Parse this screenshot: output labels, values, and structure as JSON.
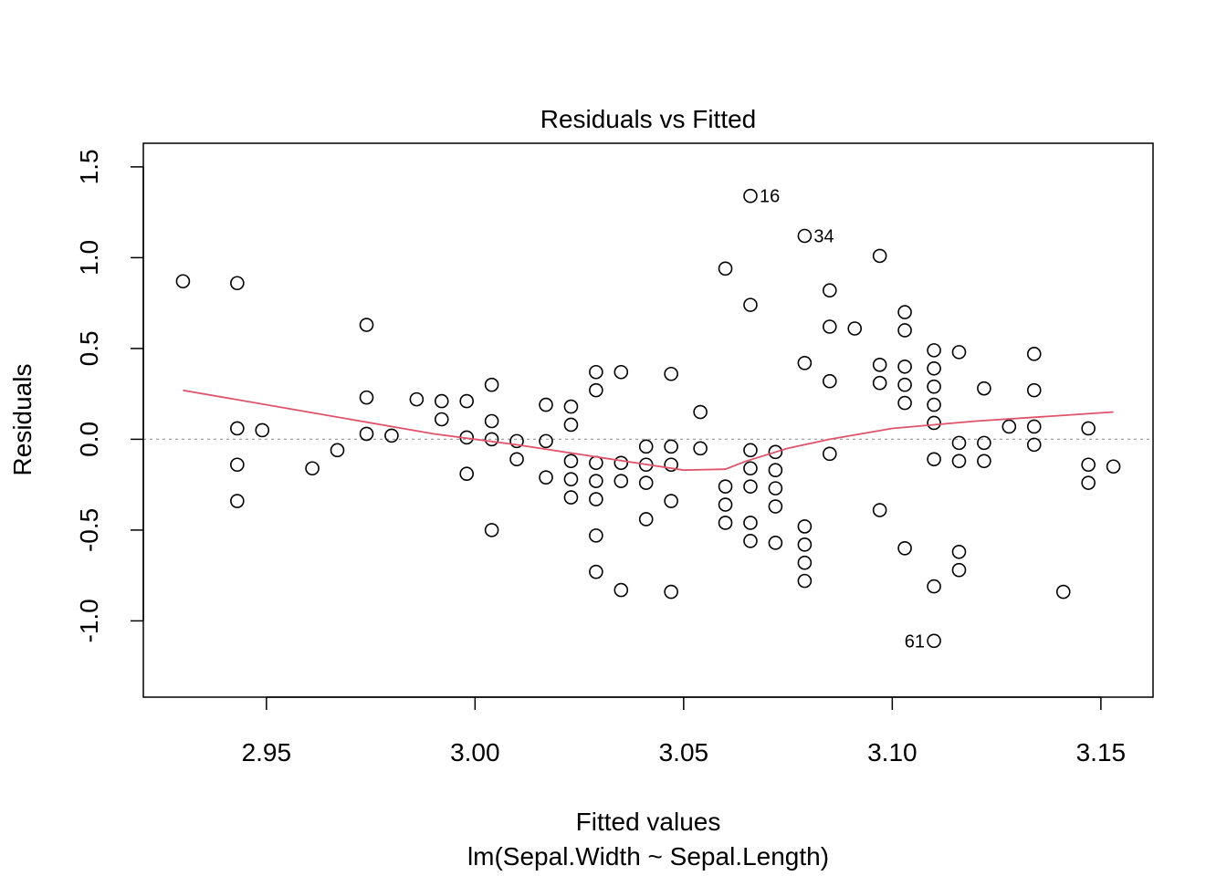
{
  "chart_data": {
    "type": "scatter",
    "title": "Residuals vs Fitted",
    "xlabel": "Fitted values",
    "subtitle": "lm(Sepal.Width ~ Sepal.Length)",
    "ylabel": "Residuals",
    "xlim": [
      2.9205,
      3.1625
    ],
    "ylim": [
      -1.42,
      1.63
    ],
    "xticks": [
      2.95,
      3.0,
      3.05,
      3.1,
      3.15
    ],
    "xtick_labels": [
      "2.95",
      "3.00",
      "3.05",
      "3.10",
      "3.15"
    ],
    "yticks": [
      -1.0,
      -0.5,
      0.0,
      0.5,
      1.0,
      1.5
    ],
    "ytick_labels": [
      "-1.0",
      "-0.5",
      "0.0",
      "0.5",
      "1.0",
      "1.5"
    ],
    "reference_line": {
      "y": 0,
      "style": "dotted",
      "color": "#a0a0a0"
    },
    "smoother": {
      "color": "#df536b",
      "x": [
        2.93,
        2.96,
        2.99,
        3.01,
        3.03,
        3.05,
        3.06,
        3.065,
        3.075,
        3.085,
        3.1,
        3.12,
        3.14,
        3.153
      ],
      "y": [
        0.27,
        0.15,
        0.03,
        -0.03,
        -0.1,
        -0.17,
        -0.165,
        -0.12,
        -0.05,
        0.0,
        0.06,
        0.1,
        0.13,
        0.15
      ]
    },
    "points": [
      [
        2.93,
        0.87
      ],
      [
        2.943,
        0.86
      ],
      [
        2.943,
        0.06
      ],
      [
        2.943,
        -0.14
      ],
      [
        2.943,
        -0.34
      ],
      [
        2.949,
        0.05
      ],
      [
        2.961,
        -0.16
      ],
      [
        2.967,
        -0.06
      ],
      [
        2.974,
        0.63
      ],
      [
        2.974,
        0.23
      ],
      [
        2.974,
        0.03
      ],
      [
        2.98,
        0.02
      ],
      [
        2.986,
        0.22
      ],
      [
        2.992,
        0.21
      ],
      [
        2.992,
        0.11
      ],
      [
        2.998,
        0.21
      ],
      [
        2.998,
        0.01
      ],
      [
        2.998,
        -0.19
      ],
      [
        3.004,
        0.3
      ],
      [
        3.004,
        0.1
      ],
      [
        3.004,
        0.0
      ],
      [
        3.004,
        -0.5
      ],
      [
        3.01,
        -0.01
      ],
      [
        3.01,
        -0.11
      ],
      [
        3.017,
        0.19
      ],
      [
        3.017,
        -0.01
      ],
      [
        3.017,
        -0.21
      ],
      [
        3.023,
        0.18
      ],
      [
        3.023,
        0.08
      ],
      [
        3.023,
        -0.12
      ],
      [
        3.023,
        -0.22
      ],
      [
        3.023,
        -0.32
      ],
      [
        3.029,
        0.37
      ],
      [
        3.029,
        0.27
      ],
      [
        3.029,
        -0.13
      ],
      [
        3.029,
        -0.23
      ],
      [
        3.029,
        -0.33
      ],
      [
        3.029,
        -0.53
      ],
      [
        3.029,
        -0.73
      ],
      [
        3.035,
        0.37
      ],
      [
        3.035,
        -0.13
      ],
      [
        3.035,
        -0.23
      ],
      [
        3.035,
        -0.83
      ],
      [
        3.041,
        -0.04
      ],
      [
        3.041,
        -0.14
      ],
      [
        3.041,
        -0.24
      ],
      [
        3.041,
        -0.44
      ],
      [
        3.047,
        0.36
      ],
      [
        3.047,
        -0.04
      ],
      [
        3.047,
        -0.14
      ],
      [
        3.047,
        -0.34
      ],
      [
        3.047,
        -0.84
      ],
      [
        3.054,
        0.15
      ],
      [
        3.054,
        -0.05
      ],
      [
        3.06,
        0.94
      ],
      [
        3.06,
        -0.26
      ],
      [
        3.06,
        -0.36
      ],
      [
        3.06,
        -0.46
      ],
      [
        3.066,
        1.34
      ],
      [
        3.066,
        0.74
      ],
      [
        3.066,
        -0.06
      ],
      [
        3.066,
        -0.16
      ],
      [
        3.066,
        -0.26
      ],
      [
        3.066,
        -0.46
      ],
      [
        3.066,
        -0.56
      ],
      [
        3.072,
        -0.07
      ],
      [
        3.072,
        -0.17
      ],
      [
        3.072,
        -0.27
      ],
      [
        3.072,
        -0.37
      ],
      [
        3.072,
        -0.57
      ],
      [
        3.079,
        1.12
      ],
      [
        3.079,
        0.42
      ],
      [
        3.079,
        -0.48
      ],
      [
        3.079,
        -0.58
      ],
      [
        3.079,
        -0.68
      ],
      [
        3.079,
        -0.78
      ],
      [
        3.085,
        0.82
      ],
      [
        3.085,
        0.62
      ],
      [
        3.085,
        0.32
      ],
      [
        3.085,
        -0.08
      ],
      [
        3.091,
        0.61
      ],
      [
        3.097,
        1.01
      ],
      [
        3.097,
        0.41
      ],
      [
        3.097,
        0.31
      ],
      [
        3.097,
        -0.39
      ],
      [
        3.103,
        0.7
      ],
      [
        3.103,
        0.6
      ],
      [
        3.103,
        0.4
      ],
      [
        3.103,
        0.3
      ],
      [
        3.103,
        0.2
      ],
      [
        3.103,
        -0.6
      ],
      [
        3.11,
        0.49
      ],
      [
        3.11,
        0.39
      ],
      [
        3.11,
        0.29
      ],
      [
        3.11,
        0.19
      ],
      [
        3.11,
        0.09
      ],
      [
        3.11,
        -0.11
      ],
      [
        3.11,
        -0.81
      ],
      [
        3.11,
        -1.11
      ],
      [
        3.116,
        0.48
      ],
      [
        3.116,
        -0.02
      ],
      [
        3.116,
        -0.12
      ],
      [
        3.116,
        -0.62
      ],
      [
        3.116,
        -0.72
      ],
      [
        3.122,
        0.28
      ],
      [
        3.122,
        -0.02
      ],
      [
        3.122,
        -0.12
      ],
      [
        3.128,
        0.07
      ],
      [
        3.134,
        0.47
      ],
      [
        3.134,
        0.27
      ],
      [
        3.134,
        0.07
      ],
      [
        3.134,
        -0.03
      ],
      [
        3.141,
        -0.84
      ],
      [
        3.147,
        0.06
      ],
      [
        3.147,
        -0.14
      ],
      [
        3.147,
        -0.24
      ],
      [
        3.153,
        -0.15
      ]
    ],
    "labeled_points": [
      {
        "label": "16",
        "x": 3.066,
        "y": 1.34,
        "side": "right"
      },
      {
        "label": "34",
        "x": 3.079,
        "y": 1.12,
        "side": "right"
      },
      {
        "label": "61",
        "x": 3.11,
        "y": -1.11,
        "side": "left"
      }
    ]
  }
}
